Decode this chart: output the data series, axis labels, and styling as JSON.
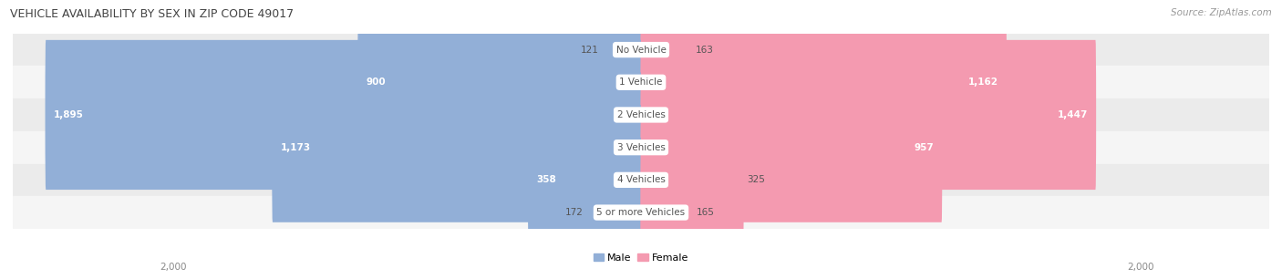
{
  "title": "VEHICLE AVAILABILITY BY SEX IN ZIP CODE 49017",
  "source": "Source: ZipAtlas.com",
  "categories": [
    "No Vehicle",
    "1 Vehicle",
    "2 Vehicles",
    "3 Vehicles",
    "4 Vehicles",
    "5 or more Vehicles"
  ],
  "male_values": [
    121,
    900,
    1895,
    1173,
    358,
    172
  ],
  "female_values": [
    163,
    1162,
    1447,
    957,
    325,
    165
  ],
  "male_color": "#92afd7",
  "female_color": "#f49ab0",
  "row_bg_even": "#ebebeb",
  "row_bg_odd": "#f5f5f5",
  "axis_max": 2000,
  "title_fontsize": 9,
  "source_fontsize": 7.5,
  "value_fontsize": 7.5,
  "category_fontsize": 7.5,
  "legend_fontsize": 8,
  "axis_label_fontsize": 7.5,
  "background_color": "#ffffff",
  "fig_width": 14.06,
  "fig_height": 3.06
}
